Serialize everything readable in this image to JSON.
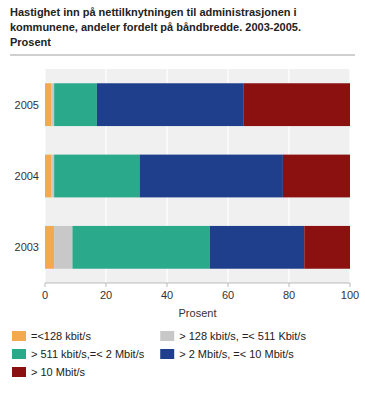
{
  "chart_data": {
    "type": "bar",
    "orientation": "horizontal",
    "stacked": true,
    "title": "Hastighet inn på nettilknytningen til administrasjonen i kommunene, andeler fordelt på båndbredde. 2003-2005.",
    "subtitle": "Prosent",
    "xlabel": "Prosent",
    "categories": [
      "2003",
      "2004",
      "2005"
    ],
    "series": [
      {
        "name": "=<128 kbit/s",
        "color": "#f5a94e",
        "values": [
          3,
          2,
          2
        ]
      },
      {
        "name": "> 128 kbit/s, =< 511 Kbit/s",
        "color": "#c8c8c8",
        "values": [
          6,
          1,
          1
        ]
      },
      {
        "name": "> 511 kbit/s,=< 2 Mbit/s",
        "color": "#2aaa8a",
        "values": [
          45,
          28,
          14
        ]
      },
      {
        "name": "> 2 Mbit/s, =< 10 Mbit/s",
        "color": "#1f3e8c",
        "values": [
          31,
          47,
          48
        ]
      },
      {
        "name": "> 10 Mbit/s",
        "color": "#8b1010",
        "values": [
          15,
          22,
          35
        ]
      }
    ],
    "xlim": [
      0,
      100
    ],
    "xticks": [
      0,
      20,
      40,
      60,
      80,
      100
    ],
    "grid": true,
    "legend": "bottom"
  }
}
